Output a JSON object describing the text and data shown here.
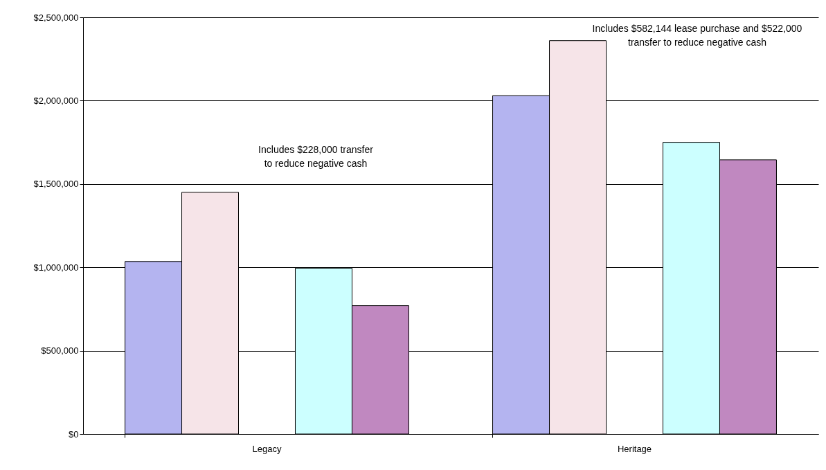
{
  "chart_data": {
    "type": "bar",
    "categories": [
      "Legacy",
      "Heritage"
    ],
    "series": [
      {
        "color": "#b4b4f0",
        "values": [
          1035000,
          2030000
        ]
      },
      {
        "color": "#f6e4e8",
        "values": [
          1450000,
          2360000
        ]
      },
      {
        "values": [
          null,
          null
        ]
      },
      {
        "color": "#ccffff",
        "values": [
          995000,
          1750000
        ]
      },
      {
        "color": "#c088c0",
        "values": [
          770000,
          1645000
        ]
      }
    ],
    "ylim": [
      0,
      2500000
    ],
    "yticks": [
      {
        "value": 0,
        "label": "$0"
      },
      {
        "value": 500000,
        "label": "$500,000"
      },
      {
        "value": 1000000,
        "label": "$1,000,000"
      },
      {
        "value": 1500000,
        "label": "$1,500,000"
      },
      {
        "value": 2000000,
        "label": "$2,000,000"
      },
      {
        "value": 2500000,
        "label": "$2,500,000"
      }
    ],
    "grid": "y",
    "legend": false,
    "annotations": [
      "Includes $228,000 transfer\nto reduce negative cash",
      "Includes $582,144 lease purchase and $522,000\ntransfer to reduce negative cash"
    ]
  }
}
